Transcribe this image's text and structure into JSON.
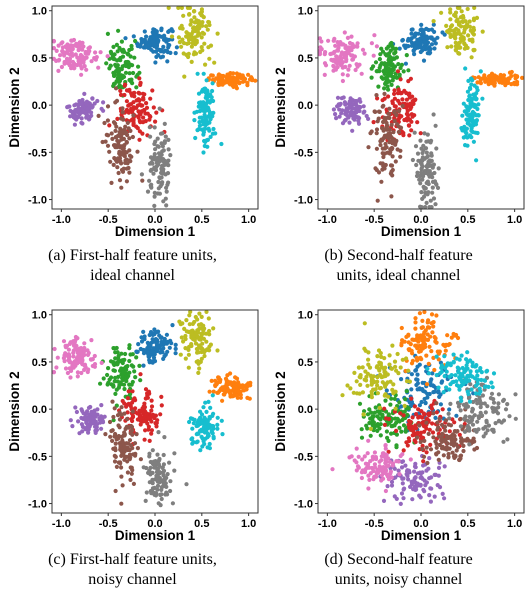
{
  "colors": [
    "#1f77b4",
    "#ff7f0e",
    "#2ca02c",
    "#d62728",
    "#9467bd",
    "#8c564b",
    "#e377c2",
    "#7f7f7f",
    "#bcbd22",
    "#17becf"
  ],
  "chart_data": [
    {
      "type": "scatter",
      "xlabel": "Dimension 1",
      "ylabel": "Dimension 2",
      "xlim": [
        -1.1,
        1.1
      ],
      "ylim": [
        -1.1,
        1.05
      ],
      "xticks": [
        "-1.0",
        "-0.5",
        "0.0",
        "0.5",
        "1.0"
      ],
      "yticks": [
        "-1.0",
        "-0.5",
        "0.0",
        "0.5",
        "1.0"
      ],
      "caption_lines": [
        "(a) First-half feature units,",
        "ideal channel"
      ],
      "clusters": [
        {
          "color_index": 0,
          "center": [
            0.0,
            0.68
          ],
          "spread": [
            0.09,
            0.08
          ],
          "n": 110
        },
        {
          "color_index": 1,
          "center": [
            0.82,
            0.27
          ],
          "spread": [
            0.12,
            0.03
          ],
          "n": 100
        },
        {
          "color_index": 2,
          "center": [
            -0.35,
            0.4
          ],
          "spread": [
            0.08,
            0.13
          ],
          "n": 100
        },
        {
          "color_index": 3,
          "center": [
            -0.2,
            -0.05
          ],
          "spread": [
            0.1,
            0.13
          ],
          "n": 100
        },
        {
          "color_index": 4,
          "center": [
            -0.77,
            -0.05
          ],
          "spread": [
            0.08,
            0.07
          ],
          "n": 90
        },
        {
          "color_index": 5,
          "center": [
            -0.37,
            -0.38
          ],
          "spread": [
            0.08,
            0.2
          ],
          "n": 110
        },
        {
          "color_index": 6,
          "center": [
            -0.85,
            0.53
          ],
          "spread": [
            0.13,
            0.1
          ],
          "n": 110
        },
        {
          "color_index": 7,
          "center": [
            0.05,
            -0.67
          ],
          "spread": [
            0.06,
            0.2
          ],
          "n": 100
        },
        {
          "color_index": 8,
          "center": [
            0.43,
            0.75
          ],
          "spread": [
            0.09,
            0.15
          ],
          "n": 100
        },
        {
          "color_index": 9,
          "center": [
            0.54,
            -0.1
          ],
          "spread": [
            0.05,
            0.18
          ],
          "n": 100
        }
      ]
    },
    {
      "type": "scatter",
      "xlabel": "Dimension 1",
      "ylabel": "Dimension 2",
      "xlim": [
        -1.1,
        1.1
      ],
      "ylim": [
        -1.1,
        1.05
      ],
      "xticks": [
        "-1.0",
        "-0.5",
        "0.0",
        "0.5",
        "1.0"
      ],
      "yticks": [
        "-1.0",
        "-0.5",
        "0.0",
        "0.5",
        "1.0"
      ],
      "caption_lines": [
        "(b) Second-half feature",
        "units, ideal channel"
      ],
      "clusters": [
        {
          "color_index": 0,
          "center": [
            0.0,
            0.68
          ],
          "spread": [
            0.09,
            0.08
          ],
          "n": 110
        },
        {
          "color_index": 1,
          "center": [
            0.82,
            0.27
          ],
          "spread": [
            0.12,
            0.03
          ],
          "n": 100
        },
        {
          "color_index": 2,
          "center": [
            -0.35,
            0.4
          ],
          "spread": [
            0.08,
            0.13
          ],
          "n": 100
        },
        {
          "color_index": 3,
          "center": [
            -0.2,
            -0.05
          ],
          "spread": [
            0.1,
            0.13
          ],
          "n": 100
        },
        {
          "color_index": 4,
          "center": [
            -0.77,
            -0.05
          ],
          "spread": [
            0.08,
            0.07
          ],
          "n": 90
        },
        {
          "color_index": 5,
          "center": [
            -0.37,
            -0.38
          ],
          "spread": [
            0.08,
            0.2
          ],
          "n": 110
        },
        {
          "color_index": 6,
          "center": [
            -0.85,
            0.53
          ],
          "spread": [
            0.13,
            0.1
          ],
          "n": 110
        },
        {
          "color_index": 7,
          "center": [
            0.05,
            -0.67
          ],
          "spread": [
            0.06,
            0.2
          ],
          "n": 100
        },
        {
          "color_index": 8,
          "center": [
            0.43,
            0.75
          ],
          "spread": [
            0.09,
            0.15
          ],
          "n": 100
        },
        {
          "color_index": 9,
          "center": [
            0.54,
            -0.1
          ],
          "spread": [
            0.05,
            0.18
          ],
          "n": 100
        }
      ]
    },
    {
      "type": "scatter",
      "xlabel": "Dimension 1",
      "ylabel": "Dimension 2",
      "xlim": [
        -1.1,
        1.1
      ],
      "ylim": [
        -1.1,
        1.05
      ],
      "xticks": [
        "-1.0",
        "-0.5",
        "0.0",
        "0.5",
        "1.0"
      ],
      "yticks": [
        "-1.0",
        "-0.5",
        "0.0",
        "0.5",
        "1.0"
      ],
      "caption_lines": [
        "(c) First-half feature units,",
        "noisy channel"
      ],
      "clusters": [
        {
          "color_index": 0,
          "center": [
            0.0,
            0.66
          ],
          "spread": [
            0.1,
            0.09
          ],
          "n": 110
        },
        {
          "color_index": 1,
          "center": [
            0.82,
            0.22
          ],
          "spread": [
            0.1,
            0.06
          ],
          "n": 100
        },
        {
          "color_index": 2,
          "center": [
            -0.35,
            0.38
          ],
          "spread": [
            0.09,
            0.15
          ],
          "n": 100
        },
        {
          "color_index": 3,
          "center": [
            -0.15,
            -0.05
          ],
          "spread": [
            0.1,
            0.13
          ],
          "n": 100
        },
        {
          "color_index": 4,
          "center": [
            -0.7,
            -0.12
          ],
          "spread": [
            0.07,
            0.07
          ],
          "n": 90
        },
        {
          "color_index": 5,
          "center": [
            -0.35,
            -0.38
          ],
          "spread": [
            0.08,
            0.18
          ],
          "n": 110
        },
        {
          "color_index": 6,
          "center": [
            -0.85,
            0.55
          ],
          "spread": [
            0.1,
            0.09
          ],
          "n": 110
        },
        {
          "color_index": 7,
          "center": [
            0.05,
            -0.72
          ],
          "spread": [
            0.07,
            0.18
          ],
          "n": 100
        },
        {
          "color_index": 8,
          "center": [
            0.45,
            0.75
          ],
          "spread": [
            0.09,
            0.15
          ],
          "n": 100
        },
        {
          "color_index": 9,
          "center": [
            0.52,
            -0.18
          ],
          "spread": [
            0.07,
            0.1
          ],
          "n": 100
        }
      ]
    },
    {
      "type": "scatter",
      "xlabel": "Dimension 1",
      "ylabel": "Dimension 2",
      "xlim": [
        -1.1,
        1.1
      ],
      "ylim": [
        -1.1,
        1.05
      ],
      "xticks": [
        "-1.0",
        "-0.5",
        "0.0",
        "0.5",
        "1.0"
      ],
      "yticks": [
        "-1.0",
        "-0.5",
        "0.0",
        "0.5",
        "1.0"
      ],
      "caption_lines": [
        "(d) Second-half feature",
        "units, noisy channel"
      ],
      "clusters": [
        {
          "color_index": 0,
          "center": [
            0.0,
            0.15
          ],
          "spread": [
            0.2,
            0.2
          ],
          "n": 110
        },
        {
          "color_index": 1,
          "center": [
            0.05,
            0.7
          ],
          "spread": [
            0.13,
            0.13
          ],
          "n": 110
        },
        {
          "color_index": 2,
          "center": [
            -0.35,
            -0.1
          ],
          "spread": [
            0.15,
            0.13
          ],
          "n": 110
        },
        {
          "color_index": 3,
          "center": [
            0.05,
            -0.2
          ],
          "spread": [
            0.18,
            0.13
          ],
          "n": 100
        },
        {
          "color_index": 4,
          "center": [
            -0.1,
            -0.75
          ],
          "spread": [
            0.15,
            0.12
          ],
          "n": 100
        },
        {
          "color_index": 5,
          "center": [
            0.3,
            -0.35
          ],
          "spread": [
            0.15,
            0.13
          ],
          "n": 110
        },
        {
          "color_index": 6,
          "center": [
            -0.5,
            -0.6
          ],
          "spread": [
            0.14,
            0.1
          ],
          "n": 100
        },
        {
          "color_index": 7,
          "center": [
            0.65,
            -0.05
          ],
          "spread": [
            0.17,
            0.17
          ],
          "n": 110
        },
        {
          "color_index": 8,
          "center": [
            -0.5,
            0.35
          ],
          "spread": [
            0.15,
            0.15
          ],
          "n": 110
        },
        {
          "color_index": 9,
          "center": [
            0.45,
            0.35
          ],
          "spread": [
            0.17,
            0.12
          ],
          "n": 110
        }
      ]
    }
  ]
}
